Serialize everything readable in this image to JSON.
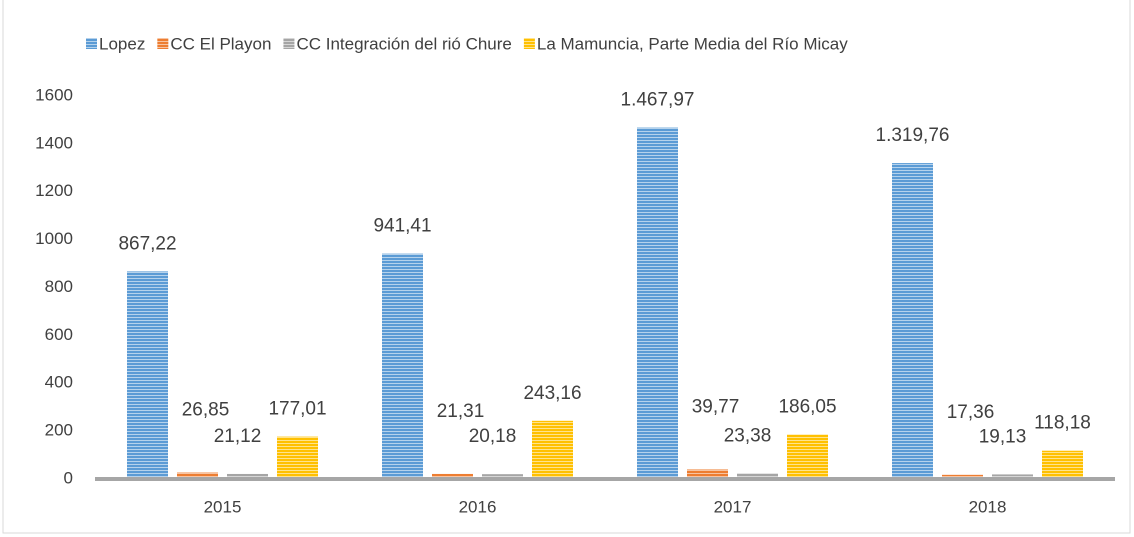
{
  "chart_data": {
    "type": "bar",
    "categories": [
      "2015",
      "2016",
      "2017",
      "2018"
    ],
    "series": [
      {
        "name": "Lopez",
        "color": "#5b9bd5",
        "values": [
          867.22,
          941.41,
          1467.97,
          1319.76
        ],
        "value_labels": [
          "867,22",
          "941,41",
          "1.467,97",
          "1.319,76"
        ]
      },
      {
        "name": "CC El Playon",
        "color": "#ed7d31",
        "values": [
          26.85,
          21.31,
          39.77,
          17.36
        ],
        "value_labels": [
          "26,85",
          "21,31",
          "39,77",
          "17,36"
        ]
      },
      {
        "name": "CC Integración del rió Chure",
        "color": "#a5a5a5",
        "values": [
          21.12,
          20.18,
          23.38,
          19.13
        ],
        "value_labels": [
          "21,12",
          "20,18",
          "23,38",
          "19,13"
        ]
      },
      {
        "name": "La Mamuncia, Parte Media del Río Micay",
        "color": "#ffc000",
        "values": [
          177.01,
          243.16,
          186.05,
          118.18
        ],
        "value_labels": [
          "177,01",
          "243,16",
          "186,05",
          "118,18"
        ]
      }
    ],
    "ylim": [
      0,
      1600
    ],
    "yticks": [
      0,
      200,
      400,
      600,
      800,
      1000,
      1200,
      1400,
      1600
    ],
    "grid": false,
    "legend": "top"
  }
}
